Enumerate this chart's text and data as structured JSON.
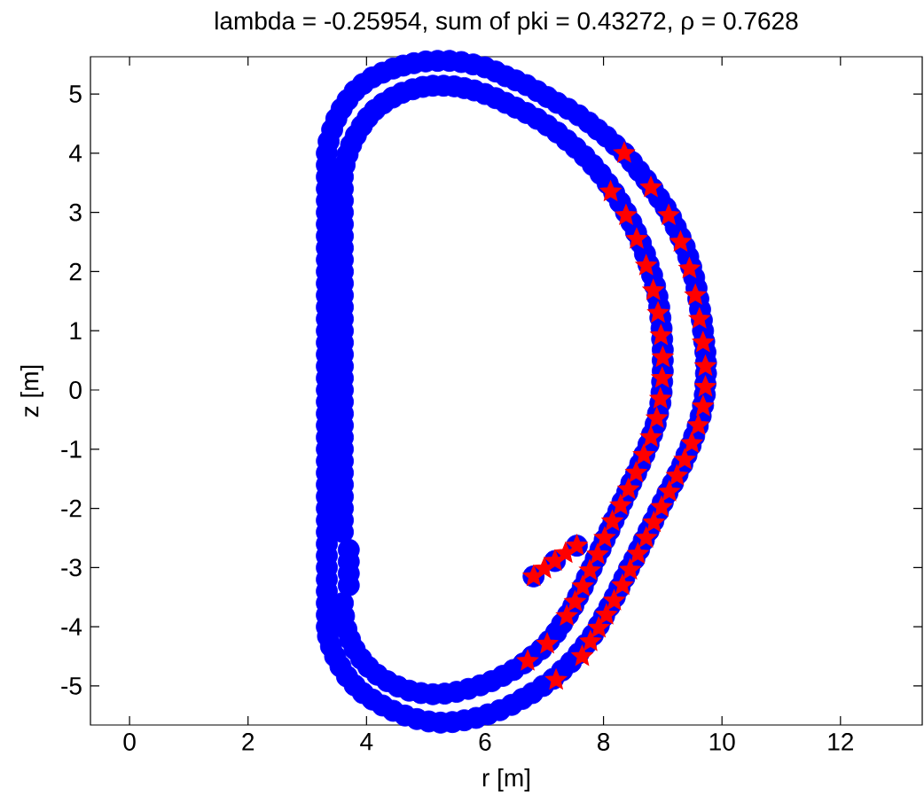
{
  "chart_data": {
    "type": "scatter",
    "title": "lambda = -0.25954, sum of pki = 0.43272, ρ = 0.7628",
    "xlabel": "r [m]",
    "ylabel": "z [m]",
    "xlim": [
      -0.66,
      13.38
    ],
    "ylim": [
      -5.66,
      5.63
    ],
    "xticks": [
      0,
      2,
      4,
      6,
      8,
      10,
      12
    ],
    "yticks": [
      -5,
      -4,
      -3,
      -2,
      -1,
      0,
      1,
      2,
      3,
      4,
      5
    ],
    "series": [
      {
        "color": "#0000ff",
        "marker": "circle",
        "x": [
          3.33,
          3.33,
          3.33,
          3.33,
          3.33,
          3.33,
          3.33,
          3.33,
          3.33,
          3.33,
          3.33,
          3.33,
          3.33,
          3.33,
          3.33,
          3.33,
          3.33,
          3.33,
          3.33,
          3.33,
          3.33,
          3.33,
          3.33,
          3.33,
          3.33,
          3.33,
          3.33,
          3.33,
          3.33,
          3.33,
          3.33,
          3.33,
          3.33,
          3.33,
          3.33,
          3.33,
          3.33,
          3.33,
          3.33,
          3.33,
          3.33,
          3.36,
          3.42,
          3.49,
          3.58,
          3.68,
          3.8,
          3.94,
          4.1,
          4.27,
          4.45,
          4.62,
          4.8,
          5.0,
          5.2,
          5.4,
          5.6,
          5.8,
          6.0,
          6.18,
          6.35,
          6.52,
          6.7,
          6.88,
          7.05,
          7.22,
          7.4,
          7.58,
          7.75,
          7.9,
          8.05,
          8.2,
          8.35,
          8.48,
          8.6,
          8.72,
          8.83,
          8.94,
          9.05,
          9.14,
          9.22,
          9.3,
          9.37,
          9.43,
          9.48,
          9.53,
          9.57,
          9.6,
          9.63,
          9.66,
          9.68,
          9.7,
          9.72,
          9.73,
          9.73,
          9.72,
          9.71,
          9.68,
          9.64,
          9.59,
          9.53,
          9.47,
          9.4,
          9.33,
          9.25,
          9.17,
          9.08,
          9.0,
          8.92,
          8.84,
          8.76,
          8.68,
          8.6,
          8.52,
          8.43,
          8.35,
          8.27,
          8.19,
          8.1,
          8.01,
          7.92,
          7.82,
          7.7,
          7.58,
          7.45,
          7.3,
          7.15,
          6.98,
          6.8,
          6.63,
          6.45,
          6.25,
          6.05,
          5.85,
          5.65,
          5.45,
          5.25,
          5.05,
          4.85,
          4.65,
          4.45,
          4.27,
          4.1,
          3.94,
          3.8,
          3.67,
          3.56,
          3.47,
          3.4,
          3.35
        ],
        "values": [
          -4,
          -3.8,
          -3.6,
          -3.4,
          -3.2,
          -3,
          -2.8,
          -2.6,
          -2.4,
          -2.2,
          -2,
          -1.8,
          -1.6,
          -1.4,
          -1.2,
          -1,
          -0.8,
          -0.6,
          -0.4,
          -0.2,
          0,
          0.2,
          0.4,
          0.6,
          0.8,
          1,
          1.2,
          1.4,
          1.6,
          1.8,
          2,
          2.2,
          2.4,
          2.6,
          2.8,
          3,
          3.2,
          3.4,
          3.6,
          3.8,
          4,
          4.2,
          4.4,
          4.58,
          4.75,
          4.9,
          5.05,
          5.17,
          5.28,
          5.36,
          5.43,
          5.48,
          5.52,
          5.55,
          5.56,
          5.56,
          5.54,
          5.5,
          5.45,
          5.38,
          5.3,
          5.23,
          5.15,
          5.05,
          4.95,
          4.85,
          4.75,
          4.64,
          4.52,
          4.4,
          4.28,
          4.14,
          4.0,
          3.85,
          3.7,
          3.55,
          3.4,
          3.24,
          3.08,
          2.92,
          2.75,
          2.58,
          2.42,
          2.25,
          2.08,
          1.9,
          1.72,
          1.54,
          1.36,
          1.18,
          1.0,
          0.82,
          0.64,
          0.46,
          0.28,
          0.1,
          -0.08,
          -0.26,
          -0.44,
          -0.61,
          -0.78,
          -0.94,
          -1.1,
          -1.26,
          -1.42,
          -1.58,
          -1.74,
          -1.9,
          -2.06,
          -2.22,
          -2.38,
          -2.54,
          -2.7,
          -2.86,
          -3.02,
          -3.18,
          -3.34,
          -3.5,
          -3.66,
          -3.82,
          -3.98,
          -4.14,
          -4.3,
          -4.45,
          -4.6,
          -4.74,
          -4.88,
          -5.0,
          -5.12,
          -5.22,
          -5.32,
          -5.41,
          -5.48,
          -5.54,
          -5.58,
          -5.61,
          -5.62,
          -5.6,
          -5.56,
          -5.5,
          -5.42,
          -5.33,
          -5.23,
          -5.12,
          -4.99,
          -4.84,
          -4.67,
          -4.5,
          -4.33,
          -4.16
        ]
      },
      {
        "color": "#0000ff",
        "marker": "circle",
        "x": [
          3.6,
          3.6,
          3.6,
          3.6,
          3.6,
          3.6,
          3.6,
          3.6,
          3.6,
          3.6,
          3.6,
          3.6,
          3.6,
          3.6,
          3.6,
          3.6,
          3.6,
          3.6,
          3.6,
          3.6,
          3.6,
          3.6,
          3.6,
          3.6,
          3.6,
          3.6,
          3.6,
          3.6,
          3.6,
          3.6,
          3.6,
          3.6,
          3.63,
          3.68,
          3.74,
          3.82,
          3.92,
          4.02,
          4.14,
          4.28,
          4.44,
          4.6,
          4.78,
          4.95,
          5.12,
          5.3,
          5.48,
          5.65,
          5.82,
          6.0,
          6.18,
          6.35,
          6.52,
          6.7,
          6.88,
          7.05,
          7.22,
          7.38,
          7.53,
          7.68,
          7.82,
          7.95,
          8.07,
          8.18,
          8.28,
          8.38,
          8.47,
          8.55,
          8.63,
          8.7,
          8.76,
          8.82,
          8.87,
          8.91,
          8.94,
          8.96,
          8.98,
          8.99,
          9.0,
          9.0,
          9.0,
          8.99,
          8.98,
          8.96,
          8.92,
          8.88,
          8.82,
          8.76,
          8.69,
          8.62,
          8.55,
          8.47,
          8.4,
          8.32,
          8.25,
          8.17,
          8.1,
          8.02,
          7.95,
          7.87,
          7.8,
          7.72,
          7.65,
          7.57,
          7.49,
          7.4,
          7.3,
          7.2,
          7.08,
          6.95,
          6.8,
          6.65,
          6.48,
          6.3,
          6.11,
          5.92,
          5.72,
          5.52,
          5.32,
          5.12,
          4.92,
          4.72,
          4.53,
          4.35,
          4.18,
          4.03,
          3.91,
          3.8,
          3.72,
          3.66,
          3.62,
          3.7,
          3.7,
          3.7,
          3.7,
          6.82,
          7.18,
          7.55
        ],
        "values": [
          -3.6,
          -2.4,
          -2.2,
          -2,
          -1.8,
          -1.6,
          -1.4,
          -1.2,
          -1,
          -0.8,
          -0.6,
          -0.4,
          -0.2,
          0,
          0.2,
          0.4,
          0.6,
          0.8,
          1,
          1.2,
          1.4,
          1.6,
          1.8,
          2,
          2.2,
          2.4,
          2.6,
          2.8,
          3,
          3.2,
          3.4,
          3.6,
          3.8,
          3.98,
          4.14,
          4.3,
          4.46,
          4.6,
          4.73,
          4.84,
          4.94,
          5.02,
          5.08,
          5.12,
          5.14,
          5.14,
          5.13,
          5.1,
          5.06,
          5.0,
          4.93,
          4.85,
          4.77,
          4.68,
          4.58,
          4.47,
          4.35,
          4.22,
          4.09,
          3.95,
          3.8,
          3.65,
          3.49,
          3.33,
          3.17,
          3.0,
          2.83,
          2.66,
          2.48,
          2.3,
          2.12,
          1.94,
          1.76,
          1.58,
          1.4,
          1.22,
          1.04,
          0.86,
          0.68,
          0.5,
          0.32,
          0.14,
          -0.04,
          -0.22,
          -0.4,
          -0.58,
          -0.75,
          -0.92,
          -1.09,
          -1.25,
          -1.41,
          -1.57,
          -1.73,
          -1.89,
          -2.05,
          -2.21,
          -2.37,
          -2.53,
          -2.69,
          -2.85,
          -3.01,
          -3.17,
          -3.33,
          -3.49,
          -3.65,
          -3.8,
          -3.95,
          -4.1,
          -4.24,
          -4.38,
          -4.5,
          -4.62,
          -4.73,
          -4.83,
          -4.92,
          -4.99,
          -5.05,
          -5.1,
          -5.13,
          -5.14,
          -5.12,
          -5.08,
          -5.01,
          -4.92,
          -4.81,
          -4.68,
          -4.54,
          -4.38,
          -4.21,
          -4.04,
          -3.82,
          -2.7,
          -2.9,
          -3.1,
          -3.3,
          -3.15,
          -2.89,
          -2.63
        ]
      },
      {
        "color": "#ff0000",
        "marker": "star",
        "x": [
          8.35,
          8.8,
          9.1,
          9.3,
          9.45,
          9.55,
          9.62,
          9.68,
          9.72,
          9.72,
          9.68,
          9.6,
          9.49,
          9.37,
          9.24,
          9.11,
          8.98,
          8.85,
          8.72,
          8.58,
          8.45,
          8.32,
          8.18,
          8.05,
          7.92,
          7.78,
          7.64,
          7.2,
          8.12,
          8.38,
          8.56,
          8.72,
          8.84,
          8.92,
          8.97,
          9.0,
          8.99,
          8.96,
          8.9,
          8.8,
          8.68,
          8.55,
          8.42,
          8.29,
          8.15,
          8.02,
          7.9,
          7.77,
          7.65,
          7.52,
          7.38,
          7.05,
          6.72,
          6.82,
          7.0,
          7.18,
          7.36,
          7.55
        ],
        "values": [
          4.0,
          3.42,
          2.95,
          2.5,
          2.05,
          1.6,
          1.2,
          0.8,
          0.4,
          0.05,
          -0.28,
          -0.6,
          -0.9,
          -1.18,
          -1.45,
          -1.72,
          -1.98,
          -2.24,
          -2.5,
          -2.77,
          -3.04,
          -3.3,
          -3.56,
          -3.8,
          -4.02,
          -4.25,
          -4.5,
          -4.9,
          3.35,
          2.95,
          2.55,
          2.1,
          1.68,
          1.3,
          0.92,
          0.55,
          0.2,
          -0.15,
          -0.48,
          -0.8,
          -1.1,
          -1.4,
          -1.68,
          -1.95,
          -2.22,
          -2.5,
          -2.78,
          -3.05,
          -3.32,
          -3.58,
          -3.82,
          -4.29,
          -4.58,
          -3.15,
          -3.02,
          -2.89,
          -2.76,
          -2.63
        ]
      }
    ]
  }
}
